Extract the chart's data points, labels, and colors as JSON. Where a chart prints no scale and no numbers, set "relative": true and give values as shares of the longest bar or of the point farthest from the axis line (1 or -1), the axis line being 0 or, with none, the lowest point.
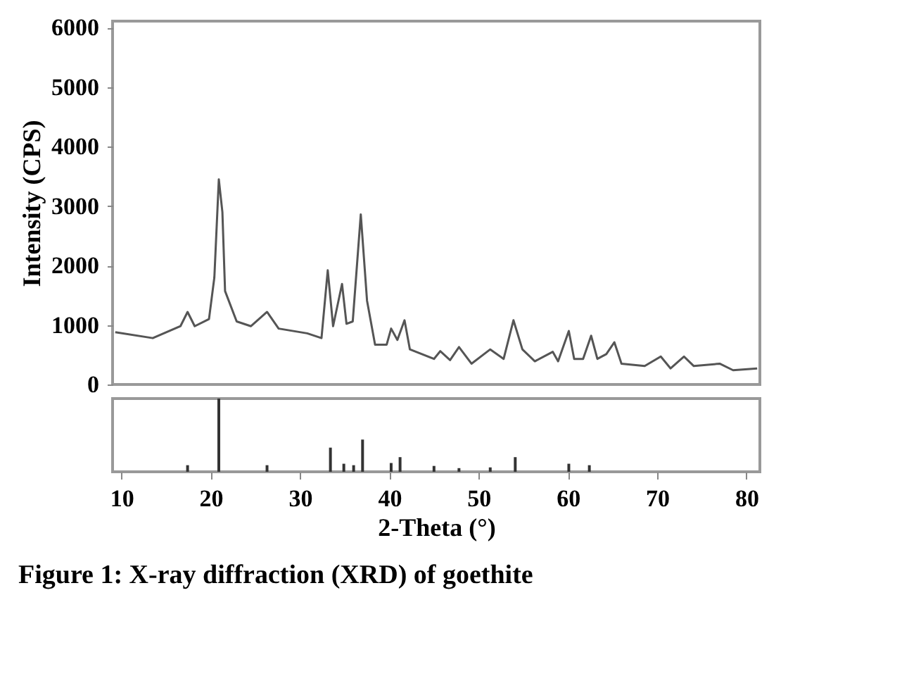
{
  "chart_data": [
    {
      "type": "line",
      "ylabel": "Intensity (CPS)",
      "tick_labels": "y",
      "xlim": [
        9,
        81.5
      ],
      "xticks": [
        10,
        20,
        30,
        40,
        50,
        60,
        70,
        80
      ],
      "ylim": [
        0,
        6110
      ],
      "yticks": [
        0,
        1000,
        2000,
        3000,
        4000,
        5000,
        6000
      ],
      "series": [
        {
          "color": "#555555",
          "x": [
            9.3,
            13.5,
            16.6,
            17.4,
            18.2,
            19.8,
            20.4,
            20.9,
            21.3,
            21.6,
            22.9,
            24.5,
            26.3,
            27.6,
            30.8,
            32.4,
            33.1,
            33.7,
            34.7,
            35.2,
            35.9,
            36.8,
            37.5,
            38.4,
            39.7,
            40.2,
            40.9,
            41.7,
            42.3,
            45,
            45.7,
            46.8,
            47.8,
            49.2,
            51.3,
            52.8,
            53.9,
            54.9,
            56.3,
            58.3,
            58.9,
            60.1,
            60.7,
            61.7,
            62.6,
            63.3,
            64.3,
            65.2,
            66,
            68.6,
            70.4,
            71.5,
            73,
            74.1,
            77,
            78.5,
            81.2
          ],
          "values": [
            880,
            780,
            980,
            1220,
            980,
            1100,
            1800,
            3450,
            2900,
            1570,
            1060,
            980,
            1220,
            940,
            860,
            780,
            1920,
            980,
            1690,
            1020,
            1060,
            2860,
            1410,
            670,
            670,
            940,
            750,
            1080,
            590,
            430,
            560,
            410,
            630,
            350,
            590,
            430,
            1080,
            590,
            390,
            550,
            390,
            900,
            430,
            430,
            820,
            430,
            510,
            710,
            350,
            310,
            470,
            270,
            470,
            310,
            350,
            240,
            270
          ]
        }
      ]
    },
    {
      "type": "bar",
      "relative": true,
      "xlabel": "2-Theta (°)",
      "tick_labels": "x",
      "annotations": [
        "Figure 1: X-ray diffraction (XRD) of goethite"
      ],
      "xlim": [
        9,
        81.5
      ],
      "xticks": [
        10,
        20,
        30,
        40,
        50,
        60,
        70,
        80
      ],
      "x": [
        17.4,
        20.9,
        26.3,
        33.4,
        34.9,
        36.0,
        37.0,
        40.2,
        41.2,
        45,
        47.8,
        51.3,
        54.1,
        60.1,
        62.4
      ],
      "series": [
        {
          "color": "#333333",
          "values": [
            0.09,
            1,
            0.09,
            0.33,
            0.11,
            0.09,
            0.44,
            0.12,
            0.2,
            0.08,
            0.05,
            0.06,
            0.2,
            0.11,
            0.09
          ]
        }
      ]
    }
  ]
}
